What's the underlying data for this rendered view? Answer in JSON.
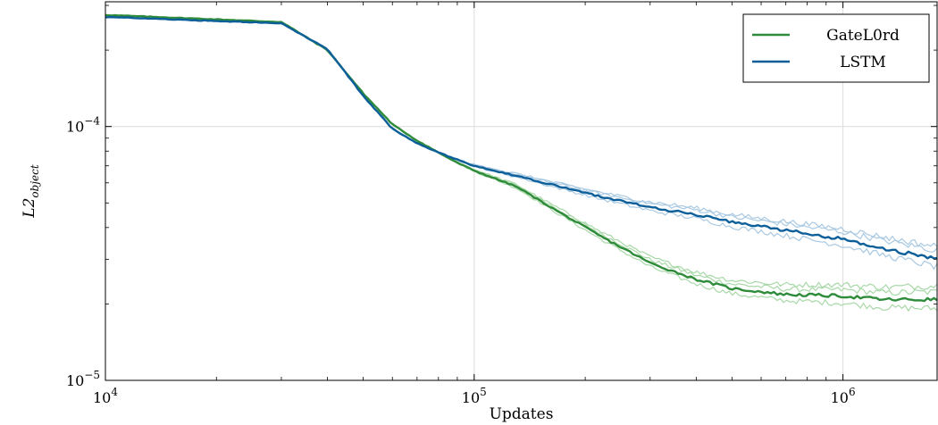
{
  "chart_data": {
    "type": "line",
    "xlabel": "Updates",
    "ylabel_base": "L2",
    "ylabel_sub": "object",
    "x_scale": "log",
    "y_scale": "log",
    "xlim": [
      10000,
      1800000
    ],
    "ylim": [
      1e-05,
      0.00031
    ],
    "grid": true,
    "legend_position": "top-right",
    "x_ticks": [
      {
        "value": 10000,
        "base": "10",
        "exp": "4"
      },
      {
        "value": 100000,
        "base": "10",
        "exp": "5"
      },
      {
        "value": 1000000,
        "base": "10",
        "exp": "6"
      }
    ],
    "y_ticks": [
      {
        "value": 1e-05,
        "base": "10",
        "exp": "−5"
      },
      {
        "value": 0.0001,
        "base": "10",
        "exp": "−4"
      }
    ],
    "series": [
      {
        "name": "GateL0rd",
        "color": "#2e8b3a",
        "faint_color": "#a8d8a8",
        "x": [
          10000,
          30000,
          40000,
          50000,
          60000,
          70000,
          80000,
          90000,
          100000,
          130000,
          170000,
          220000,
          300000,
          400000,
          500000,
          700000,
          1000000,
          1300000,
          1800000
        ],
        "y": [
          0.000275,
          0.000258,
          0.0002,
          0.000135,
          0.000102,
          8.8e-05,
          7.9e-05,
          7.2e-05,
          6.7e-05,
          5.8e-05,
          4.6e-05,
          3.7e-05,
          2.9e-05,
          2.5e-05,
          2.3e-05,
          2.18e-05,
          2.15e-05,
          2.08e-05,
          2.08e-05
        ]
      },
      {
        "name": "LSTM",
        "color": "#0d5f9a",
        "faint_color": "#a9c9e2",
        "x": [
          10000,
          30000,
          40000,
          50000,
          60000,
          70000,
          80000,
          90000,
          100000,
          130000,
          170000,
          220000,
          300000,
          400000,
          500000,
          700000,
          1000000,
          1300000,
          1800000
        ],
        "y": [
          0.00027,
          0.000255,
          0.000202,
          0.000132,
          9.8e-05,
          8.6e-05,
          7.9e-05,
          7.4e-05,
          7e-05,
          6.4e-05,
          5.8e-05,
          5.3e-05,
          4.8e-05,
          4.5e-05,
          4.2e-05,
          3.9e-05,
          3.6e-05,
          3.3e-05,
          3e-05
        ]
      }
    ]
  }
}
